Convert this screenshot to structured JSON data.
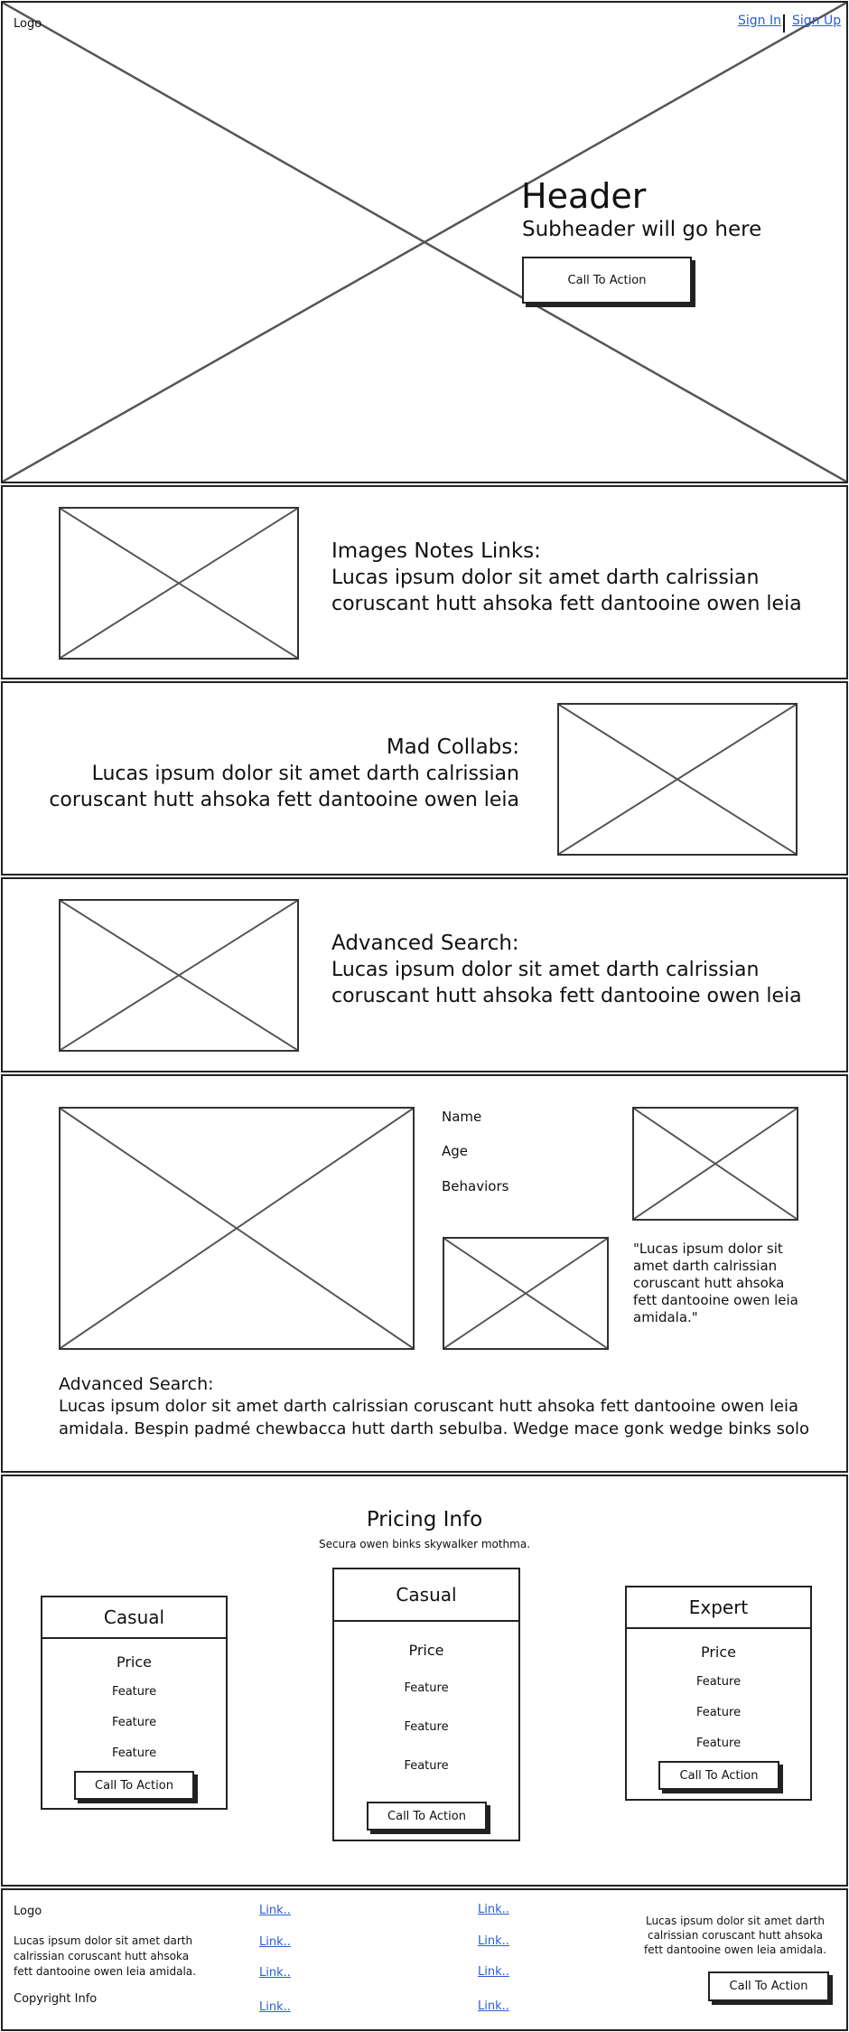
{
  "hero": {
    "logo": "Logo",
    "sign_in": "Sign In",
    "sign_up": "Sign Up",
    "title": "Header",
    "subtitle": "Subheader will go here",
    "cta": "Call To Action"
  },
  "section_images": {
    "title": "Images Notes Links:",
    "line1": "Lucas ipsum dolor sit amet darth calrissian",
    "line2": "coruscant hutt ahsoka fett dantooine owen leia"
  },
  "section_collabs": {
    "title": "Mad Collabs:",
    "line1": "Lucas ipsum dolor sit amet darth calrissian",
    "line2": "coruscant hutt ahsoka fett dantooine owen leia"
  },
  "section_search": {
    "title": "Advanced Search:",
    "line1": "Lucas ipsum dolor sit amet darth calrissian",
    "line2": "coruscant hutt ahsoka fett dantooine owen leia"
  },
  "profile": {
    "name_label": "Name",
    "age_label": "Age",
    "behaviors_label": "Behaviors",
    "quote_l1": "\"Lucas ipsum dolor sit",
    "quote_l2": "amet darth calrissian",
    "quote_l3": "coruscant hutt ahsoka",
    "quote_l4": "fett dantooine owen leia",
    "quote_l5": "amidala.\"",
    "search_title": "Advanced Search:",
    "search_line1": "Lucas ipsum dolor sit amet darth calrissian coruscant hutt ahsoka fett dantooine owen leia",
    "search_line2": "amidala. Bespin padmé chewbacca hutt darth sebulba. Wedge mace gonk wedge binks solo"
  },
  "pricing": {
    "title": "Pricing Info",
    "subtitle": "Secura owen binks skywalker mothma.",
    "cards": [
      {
        "name": "Casual",
        "price": "Price",
        "features": [
          "Feature",
          "Feature",
          "Feature"
        ],
        "cta": "Call To Action"
      },
      {
        "name": "Casual",
        "price": "Price",
        "features": [
          "Feature",
          "Feature",
          "Feature"
        ],
        "cta": "Call To Action"
      },
      {
        "name": "Expert",
        "price": "Price",
        "features": [
          "Feature",
          "Feature",
          "Feature"
        ],
        "cta": "Call To Action"
      }
    ]
  },
  "footer": {
    "logo": "Logo",
    "about_l1": "Lucas ipsum dolor sit amet darth",
    "about_l2": "calrissian coruscant hutt ahsoka",
    "about_l3": "fett dantooine owen leia amidala.",
    "copyright": "Copyright Info",
    "links_col1": [
      "Link..",
      "Link..",
      "Link..",
      "Link.."
    ],
    "links_col2": [
      "Link..",
      "Link..",
      "Link..",
      "Link.."
    ],
    "right_l1": "Lucas ipsum dolor sit amet darth",
    "right_l2": "calrissian coruscant hutt ahsoka",
    "right_l3": "fett dantooine owen leia amidala.",
    "cta": "Call To Action"
  }
}
